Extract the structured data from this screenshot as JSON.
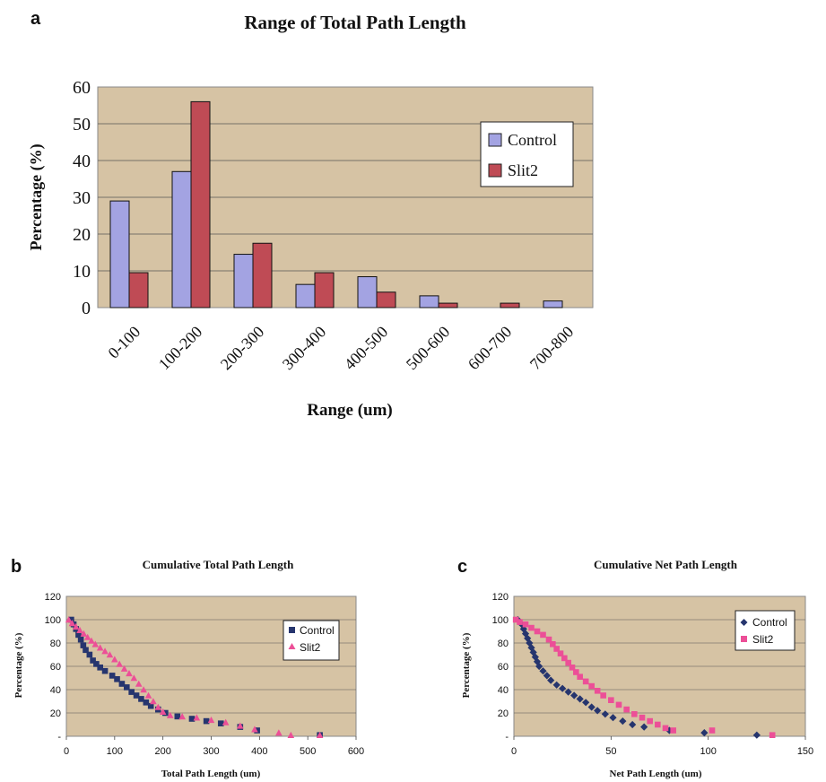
{
  "colors": {
    "plot_bg": "#d6c3a4",
    "control_bar": "#a3a3e2",
    "slit2_bar": "#bf4b55",
    "control_marker": "#26356e",
    "slit2_marker": "#ec4f97"
  },
  "panel_labels": {
    "a": "a",
    "b": "b",
    "c": "c"
  },
  "chart_data": [
    {
      "id": "a",
      "type": "bar",
      "title": "Range of Total Path Length",
      "xlabel": "Range (um)",
      "ylabel": "Percentage (%)",
      "ylim": [
        0,
        60
      ],
      "yticks": [
        0,
        10,
        20,
        30,
        40,
        50,
        60
      ],
      "ytick_labels": [
        "0",
        "10",
        "20",
        "30",
        "40",
        "50",
        "60"
      ],
      "categories": [
        "0-100",
        "100-200",
        "200-300",
        "300-400",
        "400-500",
        "500-600",
        "600-700",
        "700-800"
      ],
      "series": [
        {
          "name": "Control",
          "values": [
            29,
            37,
            14.5,
            6.3,
            8.4,
            3.2,
            0,
            1.8
          ]
        },
        {
          "name": "Slit2",
          "values": [
            9.5,
            56,
            17.5,
            9.5,
            4.2,
            1.2,
            1.2,
            0
          ]
        }
      ],
      "grid": true,
      "legend": "right"
    },
    {
      "id": "b",
      "type": "scatter",
      "title": "Cumulative Total Path Length",
      "xlabel": "Total Path Length (um)",
      "ylabel": "Percentage (%)",
      "xlim": [
        0,
        600
      ],
      "ylim": [
        0,
        120
      ],
      "xticks": [
        0,
        100,
        200,
        300,
        400,
        500,
        600
      ],
      "yticks": [
        0,
        20,
        40,
        60,
        80,
        100,
        120
      ],
      "ytick_labels": [
        "-",
        "20",
        "40",
        "60",
        "80",
        "100",
        "120"
      ],
      "grid": true,
      "legend": "right",
      "series": [
        {
          "name": "Control",
          "marker": "square",
          "points": [
            [
              10,
              100
            ],
            [
              15,
              96
            ],
            [
              20,
              92
            ],
            [
              25,
              87
            ],
            [
              30,
              83
            ],
            [
              35,
              78
            ],
            [
              40,
              74
            ],
            [
              48,
              70
            ],
            [
              55,
              65
            ],
            [
              62,
              62
            ],
            [
              70,
              59
            ],
            [
              80,
              56
            ],
            [
              95,
              52
            ],
            [
              105,
              49
            ],
            [
              115,
              45
            ],
            [
              125,
              42
            ],
            [
              135,
              38
            ],
            [
              145,
              35
            ],
            [
              155,
              32
            ],
            [
              165,
              29
            ],
            [
              175,
              26
            ],
            [
              190,
              23
            ],
            [
              205,
              20
            ],
            [
              230,
              17
            ],
            [
              260,
              15
            ],
            [
              290,
              13
            ],
            [
              320,
              11
            ],
            [
              360,
              8
            ],
            [
              395,
              5
            ],
            [
              525,
              1
            ]
          ]
        },
        {
          "name": "Slit2",
          "marker": "triangle",
          "points": [
            [
              5,
              100
            ],
            [
              12,
              97
            ],
            [
              20,
              94
            ],
            [
              28,
              91
            ],
            [
              36,
              88
            ],
            [
              44,
              85
            ],
            [
              52,
              82
            ],
            [
              60,
              79
            ],
            [
              70,
              76
            ],
            [
              80,
              73
            ],
            [
              90,
              70
            ],
            [
              100,
              66
            ],
            [
              110,
              62
            ],
            [
              120,
              58
            ],
            [
              130,
              54
            ],
            [
              140,
              50
            ],
            [
              150,
              45
            ],
            [
              160,
              40
            ],
            [
              170,
              35
            ],
            [
              180,
              30
            ],
            [
              190,
              25
            ],
            [
              200,
              21
            ],
            [
              215,
              18
            ],
            [
              240,
              17
            ],
            [
              270,
              16
            ],
            [
              300,
              14
            ],
            [
              330,
              12
            ],
            [
              360,
              9
            ],
            [
              390,
              6
            ],
            [
              440,
              3
            ],
            [
              465,
              1
            ],
            [
              525,
              1
            ]
          ]
        }
      ]
    },
    {
      "id": "c",
      "type": "scatter",
      "title": "Cumulative Net Path Length",
      "xlabel": "Net Path Length (um)",
      "ylabel": "Percentage (%)",
      "xlim": [
        0,
        150
      ],
      "ylim": [
        0,
        120
      ],
      "xticks": [
        0,
        50,
        100,
        150
      ],
      "yticks": [
        0,
        20,
        40,
        60,
        80,
        100,
        120
      ],
      "ytick_labels": [
        "-",
        "20",
        "40",
        "60",
        "80",
        "100",
        "120"
      ],
      "grid": true,
      "legend": "right",
      "series": [
        {
          "name": "Control",
          "marker": "diamond",
          "points": [
            [
              2,
              100
            ],
            [
              4,
              96
            ],
            [
              5,
              92
            ],
            [
              6,
              88
            ],
            [
              7,
              84
            ],
            [
              8,
              80
            ],
            [
              9,
              76
            ],
            [
              10,
              72
            ],
            [
              11,
              68
            ],
            [
              12,
              64
            ],
            [
              13,
              60
            ],
            [
              15,
              56
            ],
            [
              17,
              52
            ],
            [
              19,
              48
            ],
            [
              22,
              44
            ],
            [
              25,
              41
            ],
            [
              28,
              38
            ],
            [
              31,
              35
            ],
            [
              34,
              32
            ],
            [
              37,
              29
            ],
            [
              40,
              25
            ],
            [
              43,
              22
            ],
            [
              47,
              19
            ],
            [
              51,
              16
            ],
            [
              56,
              13
            ],
            [
              61,
              10
            ],
            [
              67,
              8
            ],
            [
              80,
              5
            ],
            [
              98,
              3
            ],
            [
              125,
              1
            ]
          ]
        },
        {
          "name": "Slit2",
          "marker": "square",
          "points": [
            [
              1,
              100
            ],
            [
              3,
              98
            ],
            [
              6,
              96
            ],
            [
              9,
              93
            ],
            [
              12,
              90
            ],
            [
              15,
              87
            ],
            [
              18,
              83
            ],
            [
              20,
              79
            ],
            [
              22,
              75
            ],
            [
              24,
              71
            ],
            [
              26,
              67
            ],
            [
              28,
              63
            ],
            [
              30,
              59
            ],
            [
              32,
              55
            ],
            [
              34,
              51
            ],
            [
              37,
              47
            ],
            [
              40,
              43
            ],
            [
              43,
              39
            ],
            [
              46,
              35
            ],
            [
              50,
              31
            ],
            [
              54,
              27
            ],
            [
              58,
              23
            ],
            [
              62,
              19
            ],
            [
              66,
              16
            ],
            [
              70,
              13
            ],
            [
              74,
              10
            ],
            [
              78,
              7
            ],
            [
              82,
              5
            ],
            [
              102,
              5
            ],
            [
              133,
              1
            ]
          ]
        }
      ]
    }
  ]
}
